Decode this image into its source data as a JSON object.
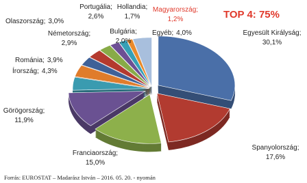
{
  "chart_data": {
    "type": "pie",
    "title": "TOP 4: 75%",
    "source": "Forrás: EUROSTAT – Madarász István – 2016. 05. 20. - nyomán",
    "label_separator": ";",
    "categories": [
      "Egyesült Királyság",
      "Spanyolország",
      "Franciaország",
      "Görögország",
      "Írország",
      "Románia",
      "Németország",
      "Olaszország",
      "Portugália",
      "Bulgária",
      "Hollandia",
      "Magyarország",
      "Egyéb"
    ],
    "values": [
      30.1,
      17.6,
      15.0,
      11.9,
      4.3,
      3.9,
      2.9,
      3.0,
      2.6,
      2.0,
      1.7,
      1.2,
      4.0
    ],
    "value_labels": [
      "30,1%",
      "17,6%",
      "15,0%",
      "11,9%",
      "4,3%",
      "3,9%",
      "2,9%",
      "3,0%",
      "2,6%",
      "2,0%",
      "1,7%",
      "1,2%",
      "4,0%"
    ],
    "colors": [
      "#4a6fa8",
      "#b23b30",
      "#8db04b",
      "#6a5192",
      "#3a9bb0",
      "#e07c2b",
      "#3f6198",
      "#b43a2f",
      "#88ab47",
      "#6d4f94",
      "#36a0b6",
      "#e98a2b",
      "#a8bfdd"
    ],
    "highlight_color": "#e0392b",
    "highlight_index": 11
  }
}
